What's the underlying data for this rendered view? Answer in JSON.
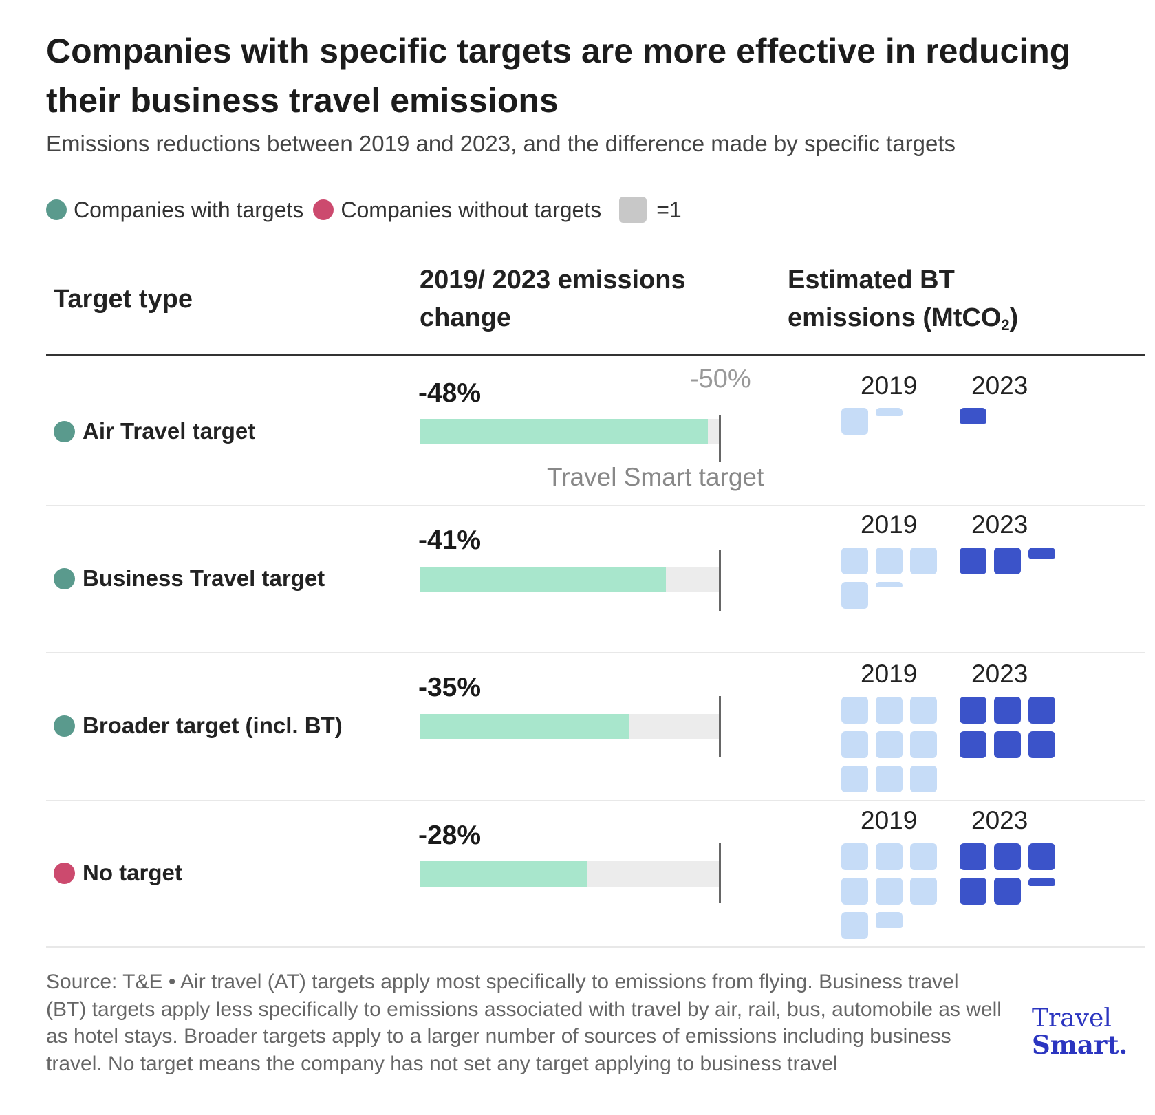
{
  "title": "Companies with specific targets are more effective in reducing their business travel emissions",
  "subtitle": "Emissions reductions between 2019 and 2023, and the difference made by specific targets",
  "legend": {
    "with_targets": "Companies with targets",
    "without_targets": "Companies without targets",
    "unit": "=1"
  },
  "headers": {
    "target_type": "Target type",
    "change_line1": "2019/ 2023 emissions",
    "change_line2": "change",
    "emissions_line1": "Estimated BT",
    "emissions_line2_pre": "emissions (MtCO",
    "emissions_sub": "2",
    "emissions_post": ")"
  },
  "target_marker": {
    "tick_label": "-50%",
    "name": "Travel Smart target"
  },
  "source": "Source: T&E • Air travel (AT) targets apply most specifically to emissions from flying. Business travel (BT) targets apply less specifically to emissions associated with travel by air, rail, bus, automobile as well as hotel stays. Broader targets apply to a larger number of sources of emissions including business travel. No target means the company has not set any target applying to business travel",
  "logo": {
    "line1": "Travel",
    "line2": "Smart."
  },
  "colors": {
    "with_targets": "#5a9a8d",
    "without_targets": "#cc4a6e",
    "bar_fill": "#a8e6cc",
    "bar_track": "#ececec",
    "unit_square": "#c8c8c8",
    "emissions_2019": "#c6dcf7",
    "emissions_2023": "#3b53c9"
  },
  "chart_data": {
    "type": "bar",
    "categories": [
      "Air Travel target",
      "Business Travel target",
      "Broader target (incl. BT)",
      "No target"
    ],
    "groups": [
      "with_targets",
      "with_targets",
      "with_targets",
      "without_targets"
    ],
    "series": [
      {
        "values": [
          -48,
          -41,
          -35,
          -28
        ]
      }
    ],
    "value_labels": [
      "-48%",
      "-41%",
      "-35%",
      "-28%"
    ],
    "range": [
      0,
      -50
    ],
    "reference_line": -50,
    "waffle": {
      "years": [
        "2019",
        "2023"
      ],
      "emissions_2019": [
        1.3,
        4.2,
        9,
        7.6
      ],
      "emissions_2023": [
        0.6,
        2.4,
        6,
        5.3
      ],
      "units_per_square": 1
    }
  }
}
